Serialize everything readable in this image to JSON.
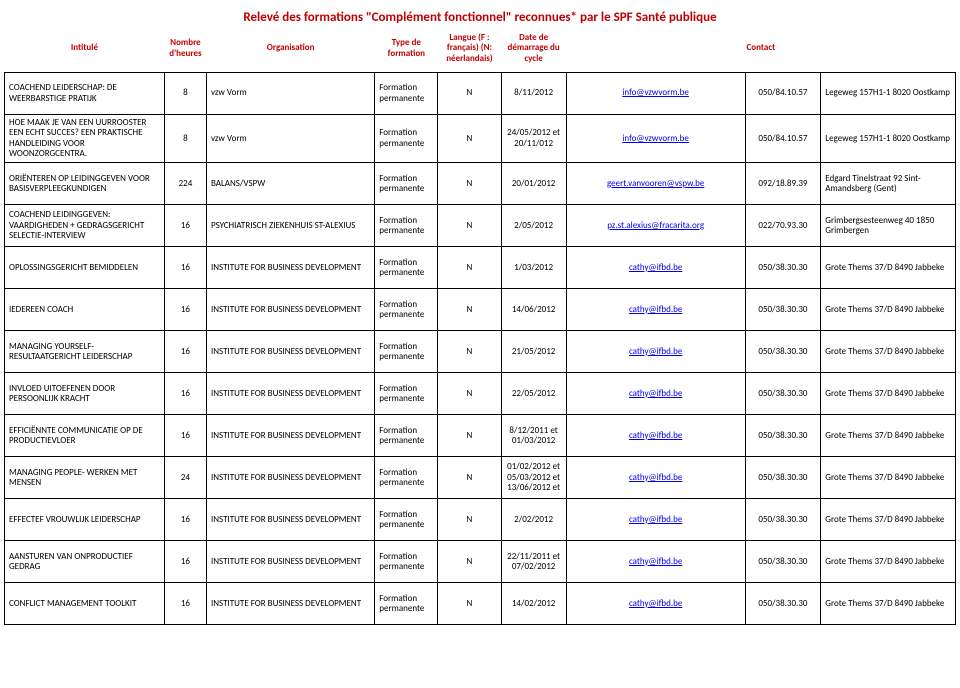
{
  "title": "Relevé des formations \"Complément fonctionnel\" reconnues* par le SPF Santé publique",
  "headers": {
    "intitule": "Intitulé",
    "heures": "Nombre d'heures",
    "org": "Organisation",
    "type": "Type de formation",
    "lang": "Langue (F : français) (N: néerlandais)",
    "date": "Date de démarrage du cycle",
    "contact": "Contact"
  },
  "type_perm": "Formation permanente",
  "rows": [
    {
      "intitule": "COACHEND LEIDERSCHAP: DE WEERBARSTIGE PRATIJK",
      "heures": "8",
      "org": "vzw Vorm",
      "lang": "N",
      "date": "8/11/2012",
      "email": "info@vzwvorm.be",
      "tel": "050/84.10.57",
      "addr": "Legeweg 157H1-1 8020 Oostkamp"
    },
    {
      "intitule": "HOE MAAK JE VAN EEN UURROOSTER EEN ECHT SUCCES? EEN PRAKTISCHE HANDLEIDING VOOR WOONZORGCENTRA.",
      "heures": "8",
      "org": "vzw Vorm",
      "lang": "N",
      "date": "24/05/2012 et 20/11/012",
      "email": "info@vzwvorm.be",
      "tel": "050/84.10.57",
      "addr": "Legeweg 157H1-1 8020 Oostkamp"
    },
    {
      "intitule": "ORIËNTEREN OP LEIDINGGEVEN VOOR BASISVERPLEEGKUNDIGEN",
      "heures": "224",
      "org": "BALANS/VSPW",
      "lang": "N",
      "date": "20/01/2012",
      "email": "geert.vanvooren@vspw.be",
      "tel": "092/18.89.39",
      "addr": "Edgard Tinelstraat 92   Sint-Amandsberg (Gent)"
    },
    {
      "intitule": "COACHEND LEIDINGGEVEN: VAARDIGHEDEN + GEDRAGSGERICHT SELECTIE-INTERVIEW",
      "heures": "16",
      "org": "PSYCHIATRISCH ZIEKENHUIS ST-ALEXIUS",
      "lang": "N",
      "date": "2/05/2012",
      "email": "pz.st.alexius@fracarita.org",
      "tel": "022/70.93.30",
      "addr": "Grimbergsesteenweg 40 1850 Grimbergen"
    },
    {
      "intitule": "OPLOSSINGSGERICHT BEMIDDELEN",
      "heures": "16",
      "org": "INSTITUTE FOR BUSINESS DEVELOPMENT",
      "lang": "N",
      "date": "1/03/2012",
      "email": "cathy@ifbd.be",
      "tel": "050/38.30.30",
      "addr": "Grote Thems 37/D 8490 Jabbeke"
    },
    {
      "intitule": "IEDEREEN COACH",
      "heures": "16",
      "org": "INSTITUTE FOR BUSINESS DEVELOPMENT",
      "lang": "N",
      "date": "14/06/2012",
      "email": "cathy@ifbd.be",
      "tel": "050/38.30.30",
      "addr": "Grote Thems 37/D 8490 Jabbeke"
    },
    {
      "intitule": "MANAGING YOURSELF-RESULTAATGERICHT LEIDERSCHAP",
      "heures": "16",
      "org": "INSTITUTE FOR BUSINESS DEVELOPMENT",
      "lang": "N",
      "date": "21/05/2012",
      "email": "cathy@ifbd.be",
      "tel": "050/38.30.30",
      "addr": "Grote Thems 37/D 8490 Jabbeke"
    },
    {
      "intitule": "INVLOED UITOEFENEN DOOR PERSOONLIJK KRACHT",
      "heures": "16",
      "org": "INSTITUTE FOR BUSINESS DEVELOPMENT",
      "lang": "N",
      "date": "22/05/2012",
      "email": "cathy@ifbd.be",
      "tel": "050/38.30.30",
      "addr": "Grote Thems 37/D 8490 Jabbeke"
    },
    {
      "intitule": "EFFICIËNNTE COMMUNICATIE OP DE PRODUCTIEVLOER",
      "heures": "16",
      "org": "INSTITUTE FOR BUSINESS DEVELOPMENT",
      "lang": "N",
      "date": "8/12/2011 et 01/03/2012",
      "email": "cathy@ifbd.be",
      "tel": "050/38.30.30",
      "addr": "Grote Thems 37/D 8490 Jabbeke"
    },
    {
      "intitule": "MANAGING PEOPLE- WERKEN MET MENSEN",
      "heures": "24",
      "org": "INSTITUTE FOR BUSINESS DEVELOPMENT",
      "lang": "N",
      "date": "01/02/2012 et 05/03/2012 et 13/06/2012 et",
      "email": "cathy@ifbd.be",
      "tel": "050/38.30.30",
      "addr": "Grote Thems 37/D 8490 Jabbeke"
    },
    {
      "intitule": "EFFECTEF VROUWLIJK LEIDERSCHAP",
      "heures": "16",
      "org": "INSTITUTE FOR BUSINESS DEVELOPMENT",
      "lang": "N",
      "date": "2/02/2012",
      "email": "cathy@ifbd.be",
      "tel": "050/38.30.30",
      "addr": "Grote Thems 37/D 8490 Jabbeke"
    },
    {
      "intitule": "AANSTUREN VAN ONPRODUCTIEF GEDRAG",
      "heures": "16",
      "org": "INSTITUTE FOR BUSINESS DEVELOPMENT",
      "lang": "N",
      "date": "22/11/2011 et 07/02/2012",
      "email": "cathy@ifbd.be",
      "tel": "050/38.30.30",
      "addr": "Grote Thems 37/D 8490 Jabbeke"
    },
    {
      "intitule": "CONFLICT MANAGEMENT TOOLKIT",
      "heures": "16",
      "org": "INSTITUTE FOR BUSINESS DEVELOPMENT",
      "lang": "N",
      "date": "14/02/2012",
      "email": "cathy@ifbd.be",
      "tel": "050/38.30.30",
      "addr": "Grote Thems 37/D 8490 Jabbeke"
    }
  ]
}
